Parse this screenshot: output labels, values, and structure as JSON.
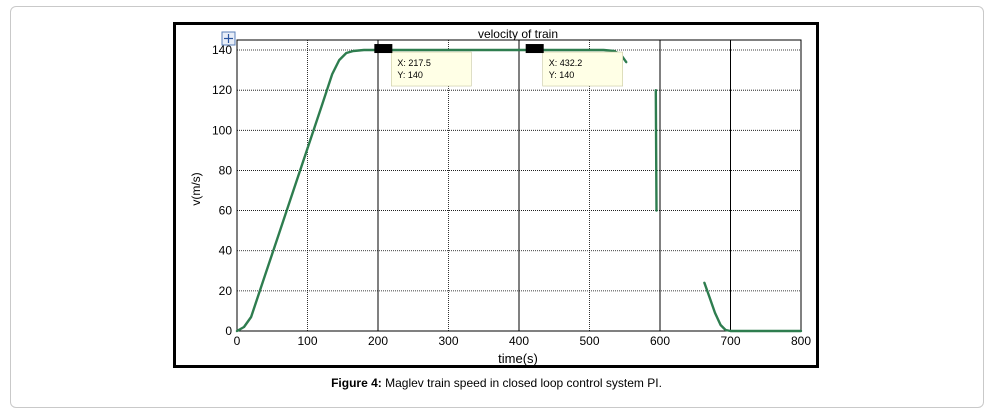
{
  "chart_data": {
    "type": "line",
    "title": "velocity of train",
    "xlabel": "time(s)",
    "ylabel": "v(m/s)",
    "xlim": [
      0,
      800
    ],
    "ylim": [
      0,
      145
    ],
    "x_ticks": [
      0,
      100,
      200,
      300,
      400,
      500,
      600,
      700,
      800
    ],
    "y_ticks": [
      0,
      20,
      40,
      60,
      80,
      100,
      120,
      140
    ],
    "grid": true,
    "line_color": "#2e7d4f",
    "series": [
      {
        "segments": [
          [
            [
              0,
              0
            ],
            [
              10,
              2
            ],
            [
              20,
              7
            ],
            [
              40,
              28
            ],
            [
              60,
              49
            ],
            [
              80,
              70
            ],
            [
              100,
              91
            ],
            [
              120,
              112
            ],
            [
              135,
              128
            ],
            [
              145,
              135
            ],
            [
              155,
              138.5
            ],
            [
              165,
              139.5
            ],
            [
              180,
              140
            ],
            [
              300,
              140
            ],
            [
              420,
              140
            ],
            [
              520,
              140
            ],
            [
              535,
              139.5
            ],
            [
              545,
              137.5
            ],
            [
              552,
              134
            ]
          ],
          [
            [
              594,
              120
            ],
            [
              595,
              60
            ]
          ],
          [
            [
              663,
              24
            ],
            [
              670,
              17
            ],
            [
              678,
              9
            ],
            [
              686,
              3
            ],
            [
              693,
              0.5
            ],
            [
              700,
              0
            ],
            [
              800,
              0
            ]
          ]
        ]
      }
    ],
    "datatips": [
      {
        "x": 217.5,
        "y": 140,
        "x_text": "X:  217.5",
        "y_text": "Y:  140"
      },
      {
        "x": 432.2,
        "y": 140,
        "x_text": "X:  432.2",
        "y_text": "Y:  140"
      }
    ]
  },
  "caption": {
    "label": "Figure 4:",
    "text": " Maglev train speed in closed loop control system PI."
  }
}
